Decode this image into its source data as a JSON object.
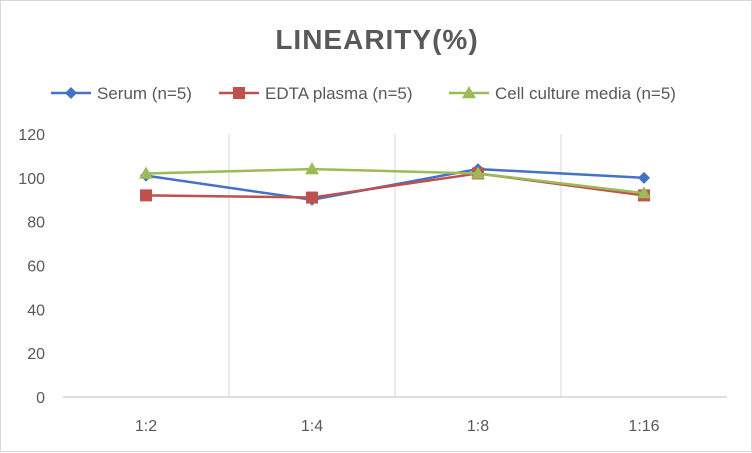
{
  "chart_data": {
    "type": "line",
    "title": "LINEARITY(%)",
    "xlabel": "",
    "ylabel": "",
    "categories": [
      "1:2",
      "1:4",
      "1:8",
      "1:16"
    ],
    "ylim": [
      0,
      120
    ],
    "yticks": [
      0,
      20,
      40,
      60,
      80,
      100,
      120
    ],
    "grid": "vertical",
    "legend": "top",
    "series": [
      {
        "name": "Serum (n=5)",
        "values": [
          101,
          90,
          104,
          100
        ],
        "color": "#4472c4",
        "marker": "diamond"
      },
      {
        "name": "EDTA plasma (n=5)",
        "values": [
          92,
          91,
          102,
          92
        ],
        "color": "#c0504d",
        "marker": "square"
      },
      {
        "name": "Cell culture media (n=5)",
        "values": [
          102,
          104,
          102,
          93
        ],
        "color": "#9bbb59",
        "marker": "triangle"
      }
    ]
  }
}
